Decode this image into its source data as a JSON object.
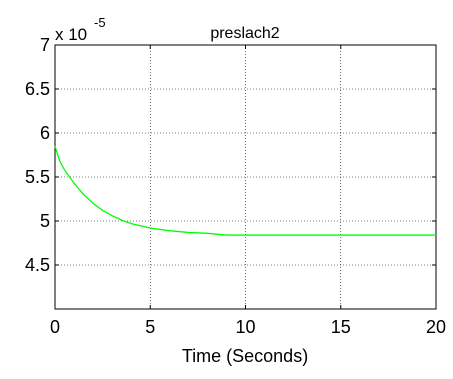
{
  "chart_data": {
    "type": "line",
    "title": "preslach2",
    "xlabel": "Time (Seconds)",
    "ylabel": "",
    "y_exponent_label": {
      "base": "x 10",
      "exponent": "-5"
    },
    "xlim": [
      0,
      20
    ],
    "ylim": [
      4.0,
      7.0
    ],
    "x_ticks": [
      0,
      5,
      10,
      15,
      20
    ],
    "x_tick_labels": [
      "0",
      "5",
      "10",
      "15",
      "20"
    ],
    "y_ticks": [
      4.5,
      5.0,
      5.5,
      6.0,
      6.5,
      7.0
    ],
    "y_tick_labels": [
      "4.5",
      "5",
      "5.5",
      "6",
      "6.5",
      "7"
    ],
    "grid": true,
    "legend": "none",
    "series": [
      {
        "color": "#00ff00",
        "x": [
          0,
          0.25,
          0.5,
          1,
          1.5,
          2,
          2.5,
          3,
          3.5,
          4,
          5,
          6,
          7,
          8,
          8.5,
          9,
          10,
          12,
          15,
          18,
          20
        ],
        "y": [
          5.85,
          5.68,
          5.58,
          5.43,
          5.3,
          5.2,
          5.12,
          5.06,
          5.01,
          4.97,
          4.92,
          4.89,
          4.87,
          4.86,
          4.85,
          4.84,
          4.84,
          4.84,
          4.84,
          4.84,
          4.84
        ]
      }
    ]
  }
}
